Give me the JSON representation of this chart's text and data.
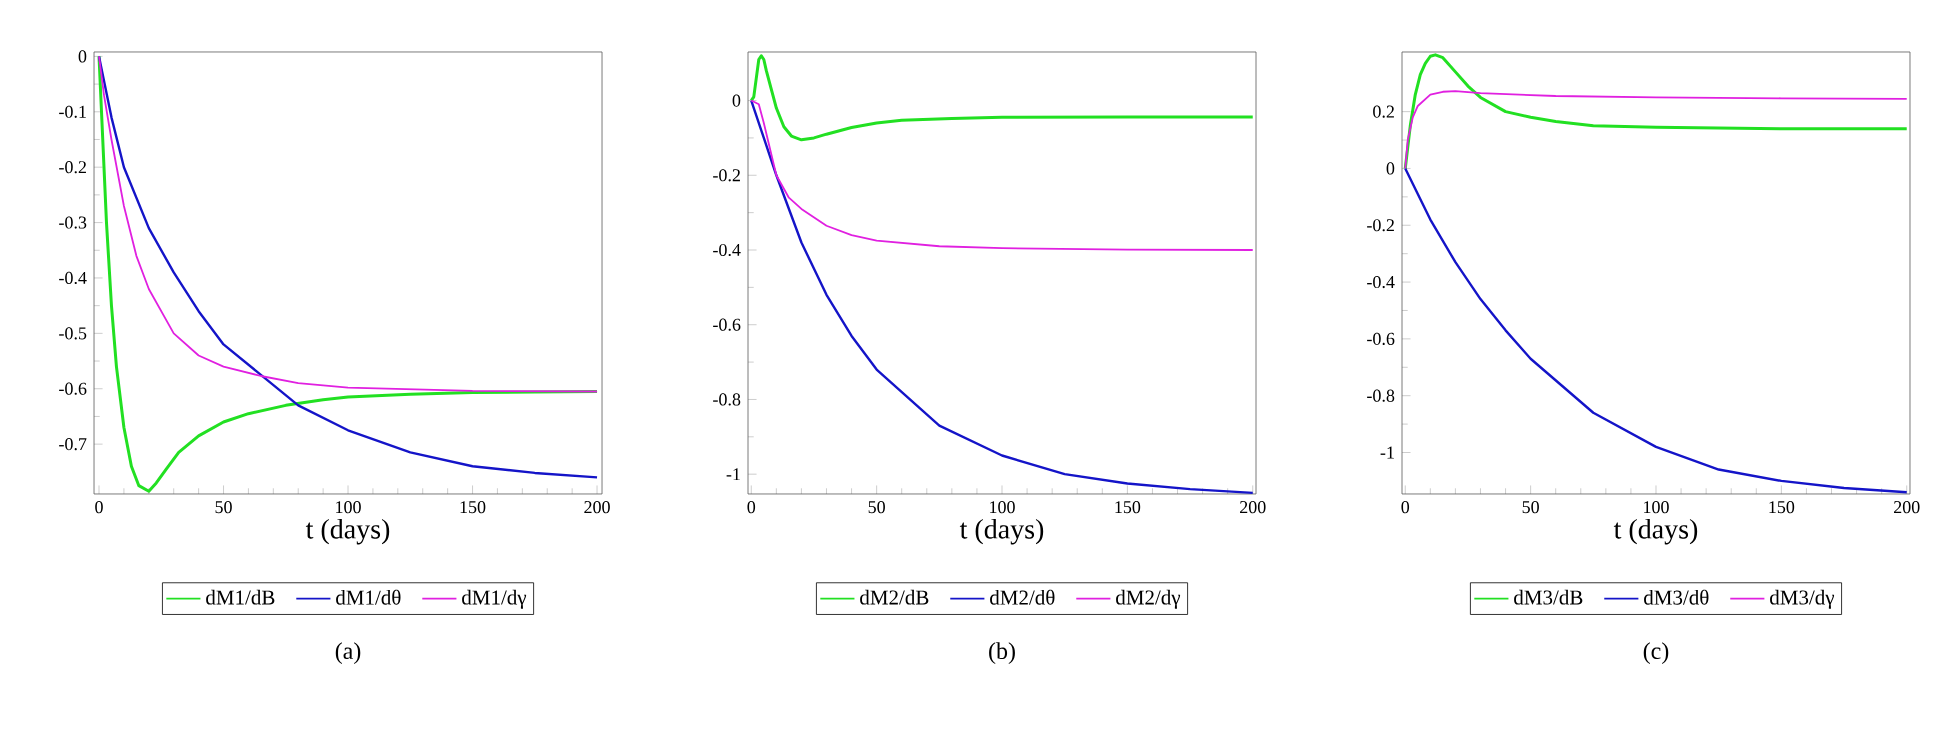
{
  "chart_data": [
    {
      "type": "line",
      "xlabel": "t (days)",
      "xlim": [
        -2,
        202
      ],
      "ylim": [
        -0.79,
        0.008
      ],
      "xticks": [
        0,
        50,
        100,
        150,
        200
      ],
      "yticks": [
        0,
        -0.1,
        -0.2,
        -0.3,
        -0.4,
        -0.5,
        -0.6,
        -0.7
      ],
      "legend": "bottom",
      "annotations": [
        "(a)"
      ],
      "series": [
        {
          "name": "dM1/dB",
          "color": "#22e022",
          "x": [
            0,
            1,
            2,
            3,
            5,
            7,
            10,
            13,
            16,
            20,
            23,
            27,
            32,
            40,
            50,
            60,
            75,
            90,
            100,
            125,
            150,
            175,
            200
          ],
          "values": [
            0,
            -0.1,
            -0.2,
            -0.3,
            -0.45,
            -0.56,
            -0.67,
            -0.74,
            -0.775,
            -0.785,
            -0.77,
            -0.745,
            -0.715,
            -0.685,
            -0.66,
            -0.645,
            -0.63,
            -0.62,
            -0.615,
            -0.61,
            -0.607,
            -0.606,
            -0.605
          ]
        },
        {
          "name": "dM1/dθ",
          "color": "#1414c8",
          "x": [
            0,
            5,
            10,
            20,
            30,
            40,
            50,
            65,
            80,
            100,
            125,
            150,
            175,
            200
          ],
          "values": [
            0,
            -0.11,
            -0.2,
            -0.31,
            -0.39,
            -0.46,
            -0.52,
            -0.575,
            -0.63,
            -0.675,
            -0.715,
            -0.74,
            -0.752,
            -0.76
          ]
        },
        {
          "name": "dM1/dγ",
          "color": "#e020e0",
          "x": [
            0,
            2,
            5,
            10,
            15,
            20,
            30,
            40,
            50,
            65,
            80,
            100,
            150,
            200
          ],
          "values": [
            0,
            -0.07,
            -0.15,
            -0.27,
            -0.36,
            -0.42,
            -0.5,
            -0.54,
            -0.56,
            -0.577,
            -0.59,
            -0.598,
            -0.604,
            -0.605
          ]
        }
      ]
    },
    {
      "type": "line",
      "xlabel": "t (days)",
      "xlim": [
        -1.3,
        201.3
      ],
      "ylim": [
        -1.053,
        0.13
      ],
      "xticks": [
        0,
        50,
        100,
        150,
        200
      ],
      "yticks": [
        0,
        -0.2,
        -0.4,
        -0.6,
        -0.8,
        -1
      ],
      "legend": "bottom",
      "annotations": [
        "(b)"
      ],
      "series": [
        {
          "name": "dM2/dB",
          "color": "#22e022",
          "x": [
            0,
            1,
            2,
            3,
            4,
            5,
            6,
            8,
            10,
            13,
            16,
            20,
            25,
            30,
            40,
            50,
            60,
            80,
            100,
            150,
            200
          ],
          "values": [
            0,
            0.01,
            0.06,
            0.11,
            0.12,
            0.11,
            0.08,
            0.03,
            -0.02,
            -0.07,
            -0.095,
            -0.105,
            -0.1,
            -0.09,
            -0.072,
            -0.06,
            -0.053,
            -0.048,
            -0.045,
            -0.044,
            -0.044
          ]
        },
        {
          "name": "dM2/dθ",
          "color": "#1414c8",
          "x": [
            0,
            5,
            10,
            20,
            30,
            40,
            50,
            75,
            100,
            125,
            150,
            175,
            200
          ],
          "values": [
            0,
            -0.1,
            -0.2,
            -0.38,
            -0.52,
            -0.63,
            -0.72,
            -0.87,
            -0.95,
            -1.0,
            -1.025,
            -1.04,
            -1.05
          ]
        },
        {
          "name": "dM2/dγ",
          "color": "#e020e0",
          "x": [
            0,
            3,
            5,
            10,
            15,
            20,
            30,
            40,
            50,
            75,
            100,
            150,
            200
          ],
          "values": [
            0,
            -0.01,
            -0.06,
            -0.2,
            -0.26,
            -0.29,
            -0.335,
            -0.36,
            -0.375,
            -0.39,
            -0.395,
            -0.399,
            -0.4
          ]
        }
      ]
    },
    {
      "type": "line",
      "xlabel": "t (days)",
      "xlim": [
        -1.3,
        201.3
      ],
      "ylim": [
        -1.146,
        0.41
      ],
      "xticks": [
        0,
        50,
        100,
        150,
        200
      ],
      "yticks": [
        0.2,
        0,
        -0.2,
        -0.4,
        -0.6,
        -0.8,
        -1
      ],
      "legend": "bottom",
      "annotations": [
        "(c)"
      ],
      "series": [
        {
          "name": "dM3/dB",
          "color": "#22e022",
          "x": [
            0,
            2,
            4,
            6,
            8,
            10,
            12,
            15,
            20,
            25,
            30,
            40,
            50,
            60,
            75,
            100,
            150,
            200
          ],
          "values": [
            0,
            0.15,
            0.26,
            0.33,
            0.37,
            0.395,
            0.4,
            0.39,
            0.34,
            0.29,
            0.25,
            0.2,
            0.18,
            0.165,
            0.15,
            0.145,
            0.14,
            0.14
          ]
        },
        {
          "name": "dM3/dθ",
          "color": "#1414c8",
          "x": [
            0,
            10,
            20,
            30,
            40,
            50,
            75,
            100,
            125,
            150,
            175,
            200
          ],
          "values": [
            0,
            -0.18,
            -0.33,
            -0.46,
            -0.57,
            -0.67,
            -0.86,
            -0.98,
            -1.06,
            -1.1,
            -1.125,
            -1.14
          ]
        },
        {
          "name": "dM3/dγ",
          "color": "#e020e0",
          "x": [
            0,
            1,
            3,
            5,
            10,
            15,
            20,
            30,
            60,
            100,
            150,
            200
          ],
          "values": [
            0,
            0.1,
            0.18,
            0.22,
            0.26,
            0.27,
            0.272,
            0.265,
            0.255,
            0.25,
            0.247,
            0.245
          ]
        }
      ]
    }
  ]
}
